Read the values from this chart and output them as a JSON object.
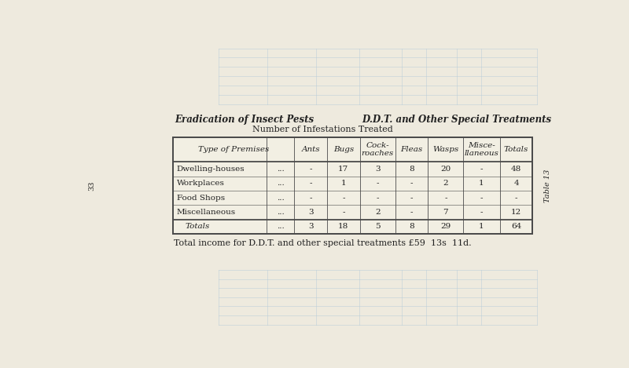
{
  "title_left": "Eradication of Insect Pests",
  "title_right": "D.D.T. and Other Special Treatments",
  "subtitle": "Number of Infestations Treated",
  "table_label": "Table 13",
  "page_number": "33",
  "footer": "Total income for D.D.T. and other special treatments £59  13s  11d.",
  "col_headers": [
    "Type of Premises",
    "Ants",
    "Bugs",
    "Cock-\nroaches",
    "Fleas",
    "Wasps",
    "Misce-\nllaneous",
    "Totals"
  ],
  "rows": [
    [
      "Dwelling-houses",
      "...",
      "-",
      "17",
      "3",
      "8",
      "20",
      "-",
      "48"
    ],
    [
      "Workplaces",
      "...",
      "-",
      "1",
      "-",
      "-",
      "2",
      "1",
      "4"
    ],
    [
      "Food Shops",
      "...",
      "-",
      "-",
      "-",
      "-",
      "-",
      "-",
      "-"
    ],
    [
      "Miscellaneous",
      "...",
      "3",
      "-",
      "2",
      "-",
      "7",
      "-",
      "12"
    ]
  ],
  "totals_row": [
    "Totals",
    "...",
    "3",
    "18",
    "5",
    "8",
    "29",
    "1",
    "64"
  ],
  "bg_color": "#eeeade",
  "table_bg": "#f2efe3",
  "border_color": "#4a4a4a",
  "text_color": "#222222",
  "watermark_color": "#b8ccd8",
  "font_size": 7.5,
  "header_font_size": 7.5,
  "side_label_size": 7.0
}
